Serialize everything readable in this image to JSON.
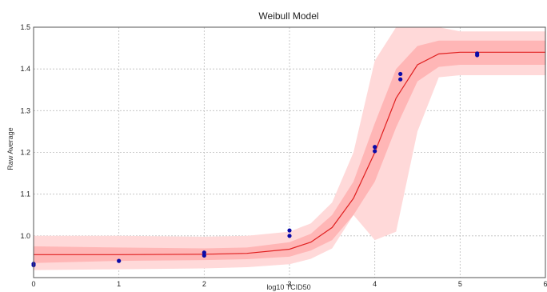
{
  "chart_data": {
    "type": "scatter",
    "title": "Weibull Model",
    "xlabel": "log10 TCID50",
    "ylabel": "Raw Average",
    "xlim": [
      0,
      6
    ],
    "ylim": [
      0.9,
      1.5
    ],
    "x_ticks": [
      "0",
      "1",
      "2",
      "3",
      "4",
      "5",
      "6"
    ],
    "y_ticks": [
      "1.0",
      "1.1",
      "1.2",
      "1.3",
      "1.4",
      "1.5"
    ],
    "grid": true,
    "colors": {
      "points": "#0a0aa8",
      "fit": "#e02020",
      "band_inner": "#ffb6b6",
      "band_outer": "#ffd9d9"
    },
    "points": [
      {
        "x": 0,
        "y": 0.93
      },
      {
        "x": 0,
        "y": 0.933
      },
      {
        "x": 1,
        "y": 0.94
      },
      {
        "x": 2,
        "y": 0.953
      },
      {
        "x": 2,
        "y": 0.96
      },
      {
        "x": 3,
        "y": 1.0
      },
      {
        "x": 3,
        "y": 1.013
      },
      {
        "x": 4,
        "y": 1.203
      },
      {
        "x": 4,
        "y": 1.213
      },
      {
        "x": 4.3,
        "y": 1.375
      },
      {
        "x": 4.3,
        "y": 1.388
      },
      {
        "x": 5.2,
        "y": 1.433
      },
      {
        "x": 5.2,
        "y": 1.437
      }
    ],
    "fit": {
      "x": [
        0,
        1,
        2,
        2.5,
        3,
        3.25,
        3.5,
        3.75,
        4,
        4.25,
        4.5,
        4.75,
        5,
        5.5,
        6
      ],
      "y": [
        0.955,
        0.955,
        0.956,
        0.958,
        0.968,
        0.985,
        1.02,
        1.09,
        1.2,
        1.33,
        1.41,
        1.436,
        1.44,
        1.44,
        1.44
      ]
    },
    "band_inner": {
      "x": [
        0,
        1,
        2,
        2.5,
        3,
        3.25,
        3.5,
        3.75,
        4,
        4.25,
        4.5,
        4.75,
        5,
        5.5,
        6
      ],
      "lower": [
        0.935,
        0.94,
        0.942,
        0.944,
        0.95,
        0.965,
        0.99,
        1.05,
        1.13,
        1.26,
        1.37,
        1.405,
        1.41,
        1.41,
        1.41
      ],
      "upper": [
        0.975,
        0.972,
        0.97,
        0.972,
        0.985,
        1.005,
        1.05,
        1.13,
        1.27,
        1.4,
        1.455,
        1.468,
        1.468,
        1.468,
        1.468
      ]
    },
    "band_outer": {
      "x": [
        0,
        1,
        2,
        2.5,
        3,
        3.25,
        3.5,
        3.75,
        4,
        4.25,
        4.5,
        4.75,
        5,
        5.5,
        6
      ],
      "lower": [
        0.918,
        0.92,
        0.922,
        0.925,
        0.932,
        0.945,
        0.97,
        1.05,
        0.99,
        1.01,
        1.25,
        1.38,
        1.385,
        1.385,
        1.385
      ],
      "upper": [
        1.0,
        1.0,
        0.998,
        1.0,
        1.01,
        1.03,
        1.08,
        1.2,
        1.42,
        1.5,
        1.5,
        1.5,
        1.49,
        1.49,
        1.49
      ]
    }
  }
}
